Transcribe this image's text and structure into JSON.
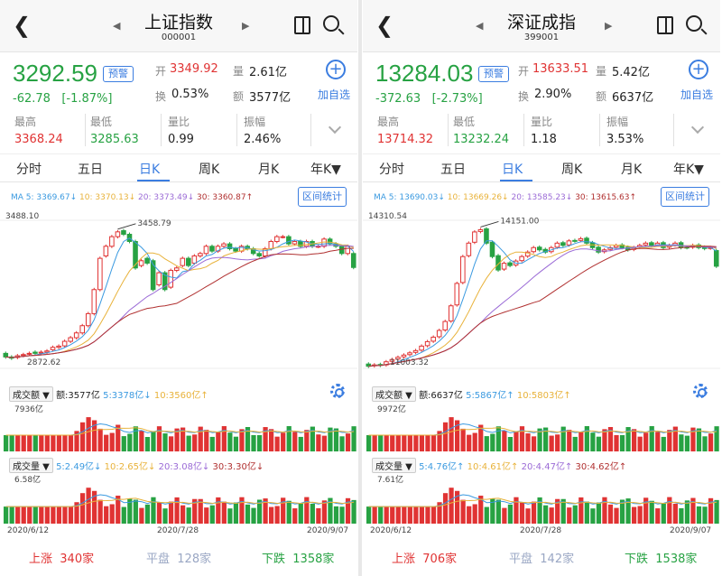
{
  "colors": {
    "up": "#e03333",
    "down": "#27a243",
    "accent": "#3b7de0",
    "ma5": "#3b9ae0",
    "ma10": "#e8b23a",
    "ma20": "#9b6bd6",
    "ma30": "#b03030"
  },
  "panels": [
    {
      "title": "上证指数",
      "code": "000001",
      "price": "3292.59",
      "warn_label": "预警",
      "change": "-62.78",
      "change_pct": "[-1.87%]",
      "open_label": "开",
      "open": "3349.92",
      "vol_label": "量",
      "vol": "2.61亿",
      "turnover_label": "换",
      "turnover": "0.53%",
      "amount_label": "额",
      "amount": "3577亿",
      "add_label": "加自选",
      "high_label": "最高",
      "high": "3368.24",
      "low_label": "最低",
      "low": "3285.63",
      "ratio_label": "量比",
      "ratio": "0.99",
      "amp_label": "振幅",
      "amp": "2.46%",
      "tabs": [
        "分时",
        "五日",
        "日K",
        "周K",
        "月K",
        "年K▼"
      ],
      "ma5": "MA 5: 3369.67↓",
      "ma10": "10: 3370.13↓",
      "ma20": "20: 3373.49↓",
      "ma30": "30: 3360.87↑",
      "range_label": "区间统计",
      "y_top": "3488.10",
      "peak_label": "3458.79",
      "low_mark": "2872.62",
      "amt_sel": "成交额",
      "amt_val": "额:3577亿",
      "amt_ma5": "5:3378亿↓",
      "amt_ma10": "10:3560亿↑",
      "amt_top": "7936亿",
      "vol_sel": "成交量",
      "vol_ma5": "5:2.49亿↓",
      "vol_ma10": "10:2.65亿↓",
      "vol_ma20": "20:3.08亿↓",
      "vol_ma30": "30:3.30亿↓",
      "vol_top": "6.58亿",
      "dates": [
        "2020/6/12",
        "2020/7/28",
        "2020/9/07"
      ],
      "up_label": "上涨",
      "up_count": "340家",
      "flat_label": "平盘",
      "flat_count": "128家",
      "down_label": "下跌",
      "down_count": "1358家"
    },
    {
      "title": "深证成指",
      "code": "399001",
      "price": "13284.03",
      "warn_label": "预警",
      "change": "-372.63",
      "change_pct": "[-2.73%]",
      "open_label": "开",
      "open": "13633.51",
      "vol_label": "量",
      "vol": "5.42亿",
      "turnover_label": "换",
      "turnover": "2.90%",
      "amount_label": "额",
      "amount": "6637亿",
      "add_label": "加自选",
      "high_label": "最高",
      "high": "13714.32",
      "low_label": "最低",
      "low": "13232.24",
      "ratio_label": "量比",
      "ratio": "1.18",
      "amp_label": "振幅",
      "amp": "3.53%",
      "tabs": [
        "分时",
        "五日",
        "日K",
        "周K",
        "月K",
        "年K▼"
      ],
      "ma5": "MA 5: 13690.03↓",
      "ma10": "10: 13669.26↓",
      "ma20": "20: 13585.23↓",
      "ma30": "30: 13615.63↑",
      "range_label": "区间统计",
      "y_top": "14310.54",
      "peak_label": "14151.00",
      "low_mark": "11003.32",
      "amt_sel": "成交额",
      "amt_val": "额:6637亿",
      "amt_ma5": "5:5867亿↑",
      "amt_ma10": "10:5803亿↑",
      "amt_top": "9972亿",
      "vol_sel": "成交量",
      "vol_ma5": "5:4.76亿↑",
      "vol_ma10": "10:4.61亿↑",
      "vol_ma20": "20:4.47亿↑",
      "vol_ma30": "30:4.62亿↑",
      "vol_top": "7.61亿",
      "dates": [
        "2020/6/12",
        "2020/7/28",
        "2020/9/07"
      ],
      "up_label": "上涨",
      "up_count": "706家",
      "flat_label": "平盘",
      "flat_count": "142家",
      "down_label": "下跌",
      "down_count": "1538家"
    }
  ],
  "chart_data": [
    {
      "type": "candlestick",
      "title": "上证指数 日K",
      "x_range": [
        "2020/6/12",
        "2020/9/07"
      ],
      "ylim": [
        2872.62,
        3488.1
      ],
      "closes": [
        2920,
        2915,
        2925,
        2930,
        2935,
        2935,
        2940,
        2945,
        2960,
        2965,
        2985,
        3000,
        3020,
        3050,
        3100,
        3200,
        3330,
        3380,
        3420,
        3440,
        3430,
        3400,
        3290,
        3320,
        3310,
        3200,
        3270,
        3200,
        3280,
        3290,
        3330,
        3300,
        3340,
        3350,
        3380,
        3360,
        3380,
        3390,
        3370,
        3360,
        3380,
        3370,
        3350,
        3340,
        3370,
        3400,
        3420,
        3420,
        3390,
        3400,
        3380,
        3400,
        3380,
        3380,
        3410,
        3390,
        3380,
        3350,
        3380,
        3292
      ],
      "opens": [
        2935,
        2920,
        2918,
        2926,
        2932,
        2940,
        2936,
        2940,
        2950,
        2960,
        2966,
        2985,
        3000,
        3020,
        3050,
        3100,
        3200,
        3340,
        3380,
        3420,
        3445,
        3430,
        3400,
        3300,
        3330,
        3320,
        3220,
        3270,
        3210,
        3280,
        3300,
        3330,
        3310,
        3340,
        3350,
        3380,
        3360,
        3380,
        3390,
        3370,
        3360,
        3380,
        3370,
        3350,
        3340,
        3370,
        3400,
        3420,
        3420,
        3390,
        3400,
        3380,
        3400,
        3380,
        3380,
        3410,
        3390,
        3380,
        3350,
        3350
      ],
      "turnover_top": "7936亿",
      "volume_top": "6.58亿"
    },
    {
      "type": "candlestick",
      "title": "深证成指 日K",
      "x_range": [
        "2020/6/12",
        "2020/9/07"
      ],
      "ylim": [
        11003.32,
        14310.54
      ],
      "closes": [
        11050,
        11080,
        11070,
        11150,
        11200,
        11250,
        11300,
        11350,
        11400,
        11500,
        11600,
        11700,
        11850,
        12050,
        12400,
        12900,
        13500,
        13800,
        14050,
        14100,
        13800,
        13500,
        13200,
        13350,
        13300,
        13400,
        13500,
        13600,
        13700,
        13650,
        13600,
        13700,
        13800,
        13750,
        13850,
        13850,
        13900,
        13800,
        13700,
        13600,
        13650,
        13700,
        13750,
        13700,
        13650,
        13700,
        13750,
        13800,
        13750,
        13800,
        13700,
        13750,
        13800,
        13700,
        13700,
        13750,
        13700,
        13680,
        13700,
        13284
      ],
      "opens": [
        11100,
        11060,
        11090,
        11080,
        11160,
        11210,
        11260,
        11310,
        11360,
        11410,
        11510,
        11610,
        11710,
        11860,
        12060,
        12420,
        12920,
        13520,
        13820,
        14060,
        14120,
        13820,
        13520,
        13220,
        13360,
        13310,
        13410,
        13510,
        13610,
        13710,
        13660,
        13610,
        13710,
        13810,
        13760,
        13860,
        13860,
        13910,
        13810,
        13710,
        13610,
        13660,
        13710,
        13760,
        13710,
        13660,
        13710,
        13760,
        13810,
        13760,
        13810,
        13710,
        13760,
        13810,
        13710,
        13710,
        13760,
        13710,
        13690,
        13634
      ],
      "turnover_top": "9972亿",
      "volume_top": "7.61亿"
    }
  ]
}
